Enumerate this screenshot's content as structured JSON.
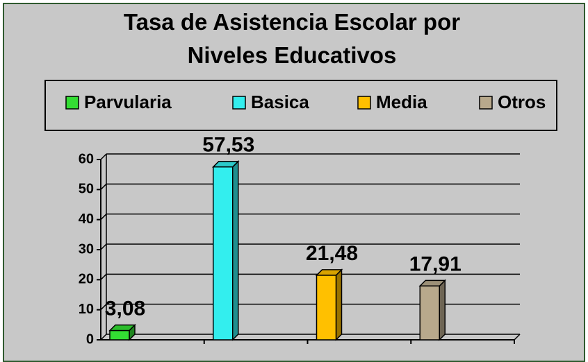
{
  "chart_data": {
    "type": "bar",
    "title": "Tasa de Asistencia Escolar por Niveles Educativos",
    "series": [
      {
        "name": "Parvularia",
        "color": "#33dd33",
        "values": [
          3.08
        ],
        "value_labels": [
          "3,08"
        ]
      },
      {
        "name": "Basica",
        "color": "#33eeee",
        "values": [
          57.53
        ],
        "value_labels": [
          "57,53"
        ]
      },
      {
        "name": "Media",
        "color": "#ffc000",
        "values": [
          21.48
        ],
        "value_labels": [
          "21,48"
        ]
      },
      {
        "name": "Otros",
        "color": "#b8a98c",
        "values": [
          17.91
        ],
        "value_labels": [
          "17,91"
        ]
      }
    ],
    "ylim": [
      0,
      60
    ],
    "yticks": [
      0,
      10,
      20,
      30,
      40,
      50,
      60
    ],
    "grid": true,
    "legend": "top"
  }
}
